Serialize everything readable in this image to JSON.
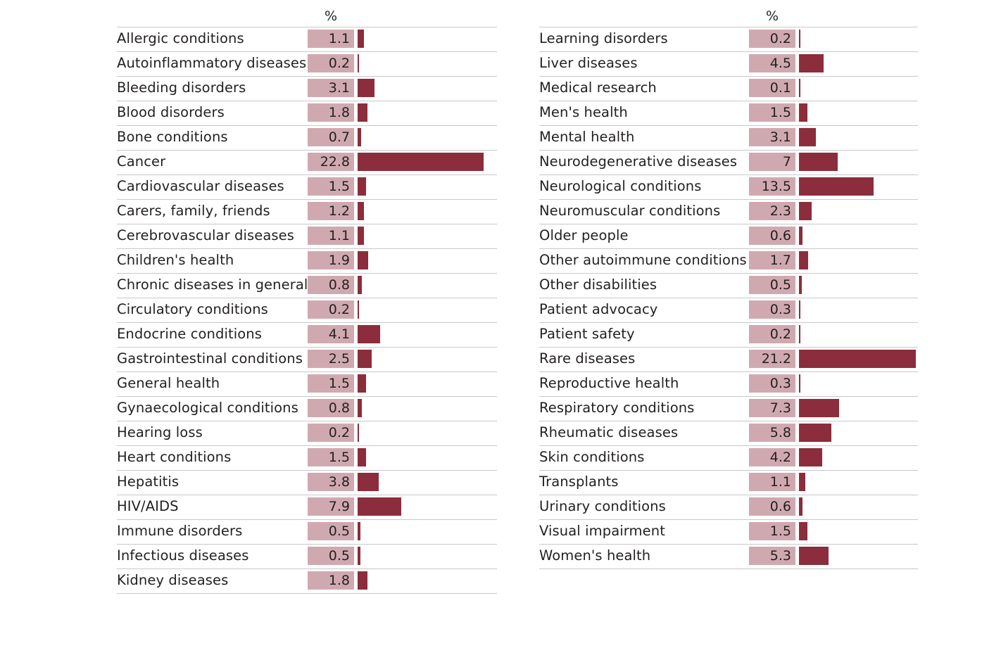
{
  "chart_data": {
    "type": "bar",
    "orientation": "horizontal",
    "columns": [
      {
        "header": "%",
        "categories": [
          "Allergic conditions",
          "Autoinflammatory diseases",
          "Bleeding disorders",
          "Blood disorders",
          "Bone conditions",
          "Cancer",
          "Cardiovascular diseases",
          "Carers, family, friends",
          "Cerebrovascular diseases",
          "Children's health",
          "Chronic diseases in general",
          "Circulatory conditions",
          "Endocrine conditions",
          "Gastrointestinal conditions",
          "General health",
          "Gynaecological conditions",
          "Hearing loss",
          "Heart conditions",
          "Hepatitis",
          "HIV/AIDS",
          "Immune disorders",
          "Infectious diseases",
          "Kidney diseases"
        ],
        "values": [
          1.1,
          0.2,
          3.1,
          1.8,
          0.7,
          22.8,
          1.5,
          1.2,
          1.1,
          1.9,
          0.8,
          0.2,
          4.1,
          2.5,
          1.5,
          0.8,
          0.2,
          1.5,
          3.8,
          7.9,
          0.5,
          0.5,
          1.8
        ]
      },
      {
        "header": "%",
        "categories": [
          "Learning disorders",
          "Liver diseases",
          "Medical research",
          "Men's health",
          "Mental health",
          "Neurodegenerative diseases",
          "Neurological conditions",
          "Neuromuscular conditions",
          "Older people",
          "Other autoimmune conditions",
          "Other disabilities",
          "Patient advocacy",
          "Patient safety",
          "Rare diseases",
          "Reproductive health",
          "Respiratory conditions",
          "Rheumatic diseases",
          "Skin conditions",
          "Transplants",
          "Urinary conditions",
          "Visual impairment",
          "Women's health"
        ],
        "values": [
          0.2,
          4.5,
          0.1,
          1.5,
          3.1,
          7,
          13.5,
          2.3,
          0.6,
          1.7,
          0.5,
          0.3,
          0.2,
          21.2,
          0.3,
          7.3,
          5.8,
          4.2,
          1.1,
          0.6,
          1.5,
          5.3
        ]
      }
    ],
    "colors": {
      "value_box": "#d0a9b0",
      "bar": "#8b2d3c",
      "rule": "#c8c8c8"
    }
  }
}
